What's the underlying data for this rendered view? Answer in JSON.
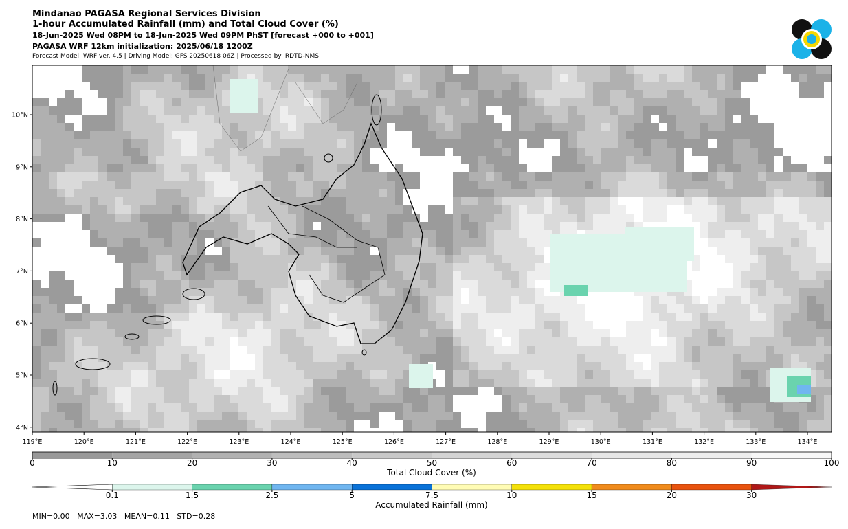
{
  "header": {
    "line1": "Mindanao PAGASA Regional Services Division",
    "line2": "1-hour Accumulated Rainfall (mm) and Total Cloud Cover (%)",
    "line3": "18-Jun-2025 Wed 08PM to 18-Jun-2025 Wed 09PM PhST [forecast +000 to +001]",
    "line4": "PAGASA WRF 12km initialization: 2025/06/18 1200Z",
    "line5": "Forecast Model: WRF ver. 4.5 | Driving Model: GFS 20250618 06Z | Processed by: RDTD-NMS"
  },
  "map": {
    "lon_labels": [
      "119°E",
      "120°E",
      "121°E",
      "122°E",
      "123°E",
      "124°E",
      "125°E",
      "126°E",
      "127°E",
      "128°E",
      "129°E",
      "130°E",
      "131°E",
      "132°E",
      "133°E",
      "134°E"
    ],
    "lat_labels": [
      "10°N",
      "9°N",
      "8°N",
      "7°N",
      "6°N",
      "5°N",
      "4°N"
    ]
  },
  "cloud_colorbar": {
    "label": "Total Cloud Cover (%)",
    "ticks": [
      "0",
      "10",
      "20",
      "30",
      "40",
      "50",
      "60",
      "70",
      "80",
      "90",
      "100"
    ],
    "colors": [
      "#999999",
      "#a5a5a5",
      "#b1b1b1",
      "#bdbdbd",
      "#c8c8c8",
      "#d3d3d3",
      "#dddddd",
      "#e6e6e6",
      "#eeeeee",
      "#f7f7f7"
    ]
  },
  "rain_colorbar": {
    "label": "Accumulated Rainfall (mm)",
    "ticks": [
      "0.1",
      "1.5",
      "2.5",
      "5",
      "7.5",
      "10",
      "15",
      "20",
      "30"
    ],
    "colors": [
      "#dcf5ec",
      "#6ad3ae",
      "#70b6f0",
      "#0a72d8",
      "#fffcb5",
      "#f4e10a",
      "#f08b1c",
      "#e8530e",
      "#b01818"
    ]
  },
  "stats": "MIN=0.00   MAX=3.03   MEAN=0.11   STD=0.28"
}
